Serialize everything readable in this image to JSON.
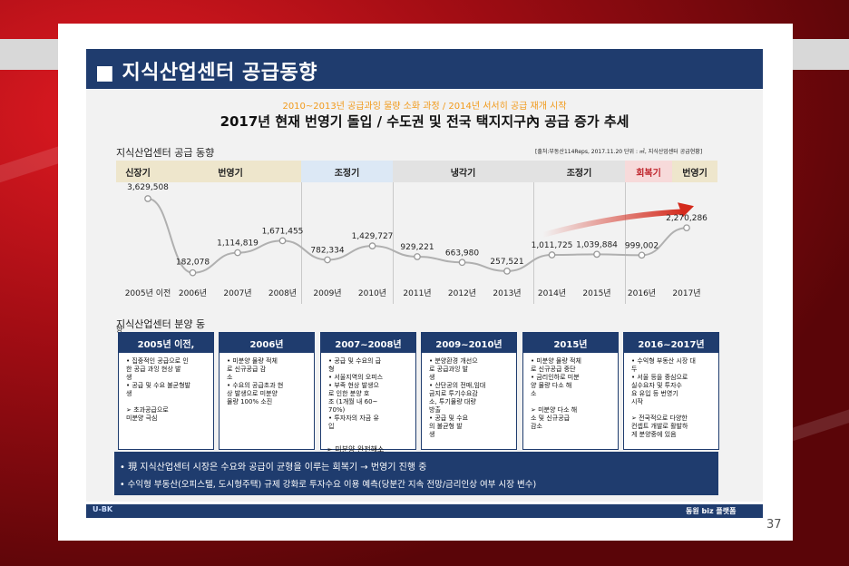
{
  "slide": {
    "title": "■ 지식산업센터 공급동향",
    "subtitle_orange": "2010~2013년 공급과잉 물량 소화 과정 / 2014년 서서히 공급 재개 시작",
    "subtitle_main": "2017년 현재 번영기 돌입 / 수도권 및 전국 택지지구內 공급 증가 추세",
    "supply_label": "지식산업센터  공급 동향",
    "source": "[출처:부동산114Reps, 2017.11.20 단위 : ㎡, 지식산업센터 공급현황]",
    "sales_label": "지식산업센터  분양 동",
    "sales_label_extra": "향"
  },
  "phases": [
    {
      "label": "신장기",
      "color": "#eee6cc"
    },
    {
      "label": "번영기",
      "color": "#eee6cc"
    },
    {
      "label": "조정기",
      "color": "#dce8f5"
    },
    {
      "label": "냉각기",
      "color": "#e2e2e2"
    },
    {
      "label": "조정기",
      "color": "#e2e2e2"
    },
    {
      "label": "회복기",
      "color": "#f7dada"
    },
    {
      "label": "번영기",
      "color": "#eee6cc"
    }
  ],
  "chart_data": {
    "type": "line",
    "categories": [
      "2005년 이전",
      "2006년",
      "2007년",
      "2008년",
      "2009년",
      "2010년",
      "2011년",
      "2012년",
      "2013년",
      "2014년",
      "2015년",
      "2016년",
      "2017년"
    ],
    "values": [
      3629508,
      182078,
      1114819,
      1671455,
      782334,
      1429727,
      929221,
      663980,
      257521,
      1011725,
      1039884,
      999002,
      2270286
    ],
    "labels": [
      "3,629,508",
      "182,078",
      "1,114,819",
      "1,671,455",
      "782,334",
      "1,429,727",
      "929,221",
      "663,980",
      "257,521",
      "1,011,725",
      "1,039,884",
      "999,002",
      "2,270,286"
    ],
    "unit": "㎡",
    "line_color": "#b0b0b0",
    "trend_arrow_color": "#d42a1c"
  },
  "boxes": [
    {
      "head": "2005년 이전,",
      "body": "• 집중적인 공급으로 인\n  한 공급 과잉 현상 발\n  생\n• 공급 및 수요 불균형발\n  생\n\n➢ 초과공급으로\n  미분양 극심"
    },
    {
      "head": "2006년",
      "body": "• 미분양 물량 적체\n  로 신규공급 감\n  소\n• 수요의 공급초과 현\n  상 발생으로 미분양\n  물량 100% 소진"
    },
    {
      "head": "2007~2008년",
      "body": "• 공급 및 수요의 급\n  형\n• 서울지역의 오피스\n• 부족 현상 발생으\n  로 인한 분양 호\n  조 (1개월 내 60~\n  70%)\n• 투자자의 자금 유\n  입"
    },
    {
      "head": "2009~2010년",
      "body": "• 분양환경 개선으\n  로 공급과잉 발\n  생\n• 산단공의 전매,임대\n  금지로 투기수요감\n  소, 투기물량 대량\n  방출\n• 공급 및 수요\n  의 불균형 발\n  생"
    },
    {
      "head": "2015년",
      "body": "• 미분양 물량 적체\n  로 신규공급 중단\n• 금리인하로 미분\n  양 물량 다소 해\n  소\n\n➢ 미분양 다소 해\n  소 및 신규공급\n  감소"
    },
    {
      "head": "2016~2017년",
      "body": "• 수익형 부동산 시장 대\n  두\n• 서울 등을 중심으로\n  실수요자 및 투자수\n  요 유입 등 번영기\n  시작\n\n➢ 전국적으로 다양한\n  컨셉트 개발로 활발하\n  게 분양중에 있음"
    }
  ],
  "box_note": "➢ 미분양 완전해소",
  "summary": {
    "line1": "• 現 지식산업센터 시장은 수요와 공급이 균형을 이루는 회복기 → 번영기 진행 중",
    "line2": "• 수익형 부동산(오피스텔, 도시형주택) 규제 강화로 투자수요 이용 예측(당분간 지속 전망/금리인상 여부 시장 변수)"
  },
  "footer": {
    "logo": "U-BK",
    "brand": "동원 biz 플랫폼",
    "page": "37"
  }
}
